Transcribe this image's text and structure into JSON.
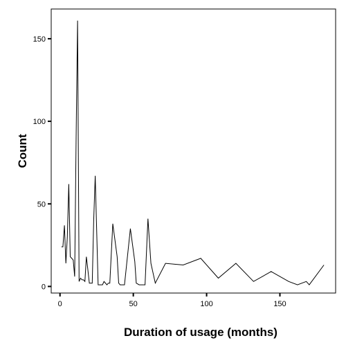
{
  "chart_data": {
    "type": "line",
    "title": "",
    "xlabel": "Duration of usage (months)",
    "ylabel": "Count",
    "xlim": [
      -6,
      188
    ],
    "ylim": [
      -4,
      168
    ],
    "xticks": [
      0,
      50,
      100,
      150
    ],
    "yticks": [
      0,
      50,
      100,
      150
    ],
    "grid": false,
    "legend": "none",
    "series": [
      {
        "line_color": "#000000",
        "x": [
          1,
          2,
          3,
          4,
          5,
          6,
          7,
          8,
          9,
          10,
          11,
          12,
          13,
          14,
          15,
          16,
          17,
          18,
          19,
          20,
          21,
          22,
          23,
          24,
          26,
          27,
          28,
          29,
          30,
          32,
          33,
          34,
          36,
          39,
          40,
          41,
          42,
          44,
          48,
          51,
          52,
          54,
          56,
          58,
          60,
          62,
          65,
          72,
          84,
          96,
          108,
          120,
          132,
          144,
          156,
          162,
          168,
          170,
          180
        ],
        "y": [
          24,
          24,
          37,
          14,
          30,
          62,
          18,
          17,
          16,
          6,
          90,
          161,
          3,
          5,
          4,
          4,
          3,
          18,
          10,
          2,
          2,
          2,
          40,
          67,
          1,
          1,
          1,
          1,
          3,
          1,
          2,
          2,
          38,
          18,
          2,
          1,
          1,
          1,
          35,
          15,
          2,
          1,
          1,
          1,
          41,
          14,
          2,
          14,
          13,
          17,
          5,
          14,
          3,
          9,
          3,
          1,
          3,
          1,
          13
        ]
      }
    ]
  }
}
